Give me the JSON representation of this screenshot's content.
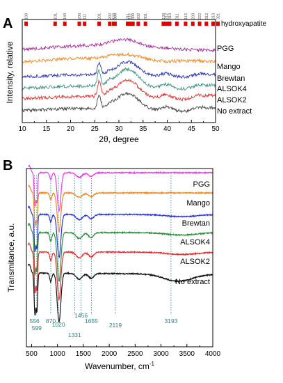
{
  "chart_data": [
    {
      "panel": "A",
      "type": "line",
      "xlabel": "2θ, degree",
      "ylabel": "Intensity, relative",
      "xlim": [
        10,
        50
      ],
      "xticks": [
        10,
        15,
        20,
        25,
        30,
        35,
        40,
        45,
        50
      ],
      "reference": {
        "name": "hydroxyapatite",
        "peaks": [
          {
            "x": 10.8,
            "label": "100"
          },
          {
            "x": 16.8,
            "label": "101"
          },
          {
            "x": 18.8,
            "label": "140"
          },
          {
            "x": 21.8,
            "label": "200"
          },
          {
            "x": 22.9,
            "label": "111"
          },
          {
            "x": 25.9,
            "label": "201"
          },
          {
            "x": 28.1,
            "label": "202"
          },
          {
            "x": 28.9,
            "label": "122"
          },
          {
            "x": 29.2,
            "label": "300"
          },
          {
            "x": 31.8,
            "label": "211"
          },
          {
            "x": 32.2,
            "label": "112"
          },
          {
            "x": 32.9,
            "label": "300"
          },
          {
            "x": 34.0,
            "label": "202"
          },
          {
            "x": 35.5,
            "label": "301"
          },
          {
            "x": 39.2,
            "label": "130"
          },
          {
            "x": 39.8,
            "label": "212"
          },
          {
            "x": 40.5,
            "label": "310"
          },
          {
            "x": 42.0,
            "label": "311"
          },
          {
            "x": 43.8,
            "label": "113"
          },
          {
            "x": 45.3,
            "label": "203"
          },
          {
            "x": 46.7,
            "label": "222"
          },
          {
            "x": 48.1,
            "label": "312"
          },
          {
            "x": 49.5,
            "label": "213"
          },
          {
            "x": 50.5,
            "label": "321"
          }
        ]
      },
      "series": [
        {
          "name": "PGG",
          "color": "#a3349a"
        },
        {
          "name": "Mango",
          "color": "#f08a24"
        },
        {
          "name": "Brewtan",
          "color": "#2a35b0"
        },
        {
          "name": "ALSOK4",
          "color": "#3f8f7f"
        },
        {
          "name": "ALSOK2",
          "color": "#e03030"
        },
        {
          "name": "No extract",
          "color": "#444444"
        }
      ]
    },
    {
      "panel": "B",
      "type": "line",
      "xlabel": "Wavenumber, cm",
      "xlabel_sup": "-1",
      "ylabel": "Transmitance, a.u.",
      "xlim": [
        400,
        4000
      ],
      "xticks": [
        500,
        1000,
        1500,
        2000,
        2500,
        3000,
        3500,
        4000
      ],
      "peak_markers": [
        {
          "x": 556,
          "label": "556"
        },
        {
          "x": 599,
          "label": "599"
        },
        {
          "x": 870,
          "label": "870"
        },
        {
          "x": 1020,
          "label": "1020"
        },
        {
          "x": 1331,
          "label": "1331"
        },
        {
          "x": 1456,
          "label": "1456"
        },
        {
          "x": 1655,
          "label": "1655"
        },
        {
          "x": 2119,
          "label": "2119"
        },
        {
          "x": 3193,
          "label": "3193"
        }
      ],
      "series": [
        {
          "name": "PGG",
          "color": "#e83ee8"
        },
        {
          "name": "Mango",
          "color": "#f08a24"
        },
        {
          "name": "Brewtan",
          "color": "#2a35d8"
        },
        {
          "name": "ALSOK4",
          "color": "#2f8f3f"
        },
        {
          "name": "ALSOK2",
          "color": "#e03030"
        },
        {
          "name": "No extract",
          "color": "#111111"
        }
      ]
    }
  ]
}
